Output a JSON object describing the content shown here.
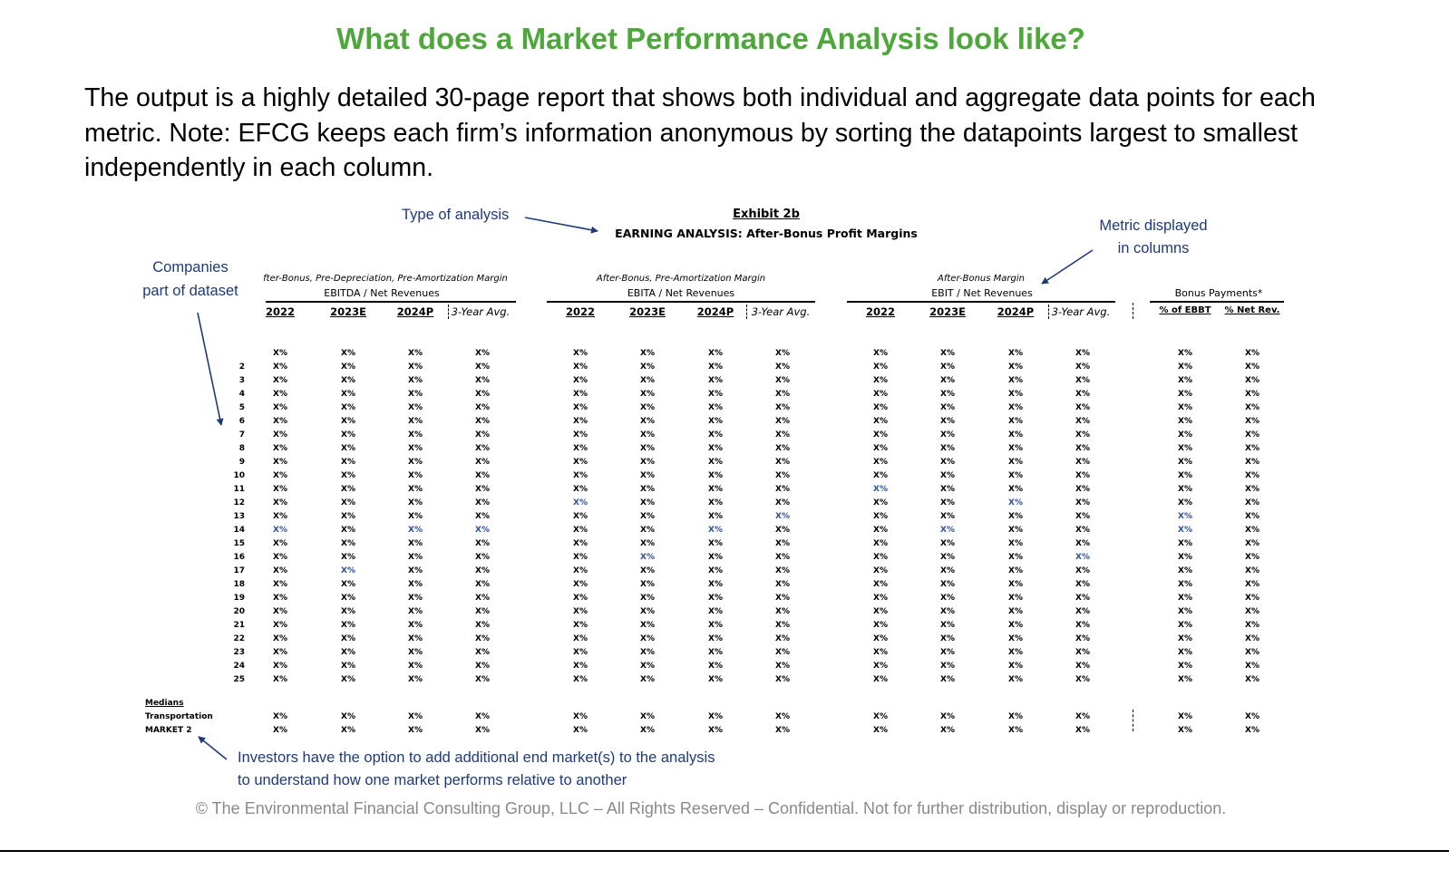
{
  "title": "What does a Market Performance Analysis look like?",
  "intro": "The output is a highly detailed 30-page report that shows both individual and aggregate data points for each metric. Note: EFCG keeps each firm’s information anonymous by sorting the datapoints largest to smallest independently in each column.",
  "exhibit": {
    "title": "Exhibit 2b",
    "subtitle": "EARNING ANALYSIS: After-Bonus Profit Margins",
    "groups": [
      {
        "italic": "fter-Bonus, Pre-Depreciation, Pre-Amortization Margin",
        "metric": "EBITDA / Net Revenues"
      },
      {
        "italic": "After-Bonus, Pre-Amortization Margin",
        "metric": "EBITA / Net Revenues"
      },
      {
        "italic": "After-Bonus Margin",
        "metric": "EBIT / Net Revenues"
      },
      {
        "italic": "",
        "metric": "Bonus Payments*"
      }
    ],
    "year_headers": [
      "2022",
      "2023E",
      "2024P",
      "3-Year Avg."
    ],
    "bonus_headers": [
      "% of EBBT",
      "% Net Rev."
    ],
    "cell_value": "X%",
    "row_numbers": [
      "",
      "2",
      "3",
      "4",
      "5",
      "6",
      "7",
      "8",
      "9",
      "10",
      "11",
      "12",
      "13",
      "14",
      "15",
      "16",
      "17",
      "18",
      "19",
      "20",
      "21",
      "22",
      "23",
      "24",
      "25"
    ],
    "medians_label": "Medians",
    "median_rows": [
      "Transportation",
      "MARKET 2"
    ]
  },
  "annotations": {
    "type_of_analysis": "Type of analysis",
    "metric_displayed": [
      "Metric displayed",
      "in columns"
    ],
    "companies": [
      "Companies",
      "part of dataset"
    ],
    "investors": [
      "Investors have the option to add additional end market(s) to the analysis",
      "to understand how one market performs relative to another"
    ]
  },
  "footer": "© The Environmental Financial Consulting Group, LLC – All Rights Reserved – Confidential. Not for further distribution, display or reproduction.",
  "colors": {
    "title_green": "#4ea73b",
    "annotation_blue": "#1f3a78",
    "footer_gray": "#8a8a8a"
  }
}
